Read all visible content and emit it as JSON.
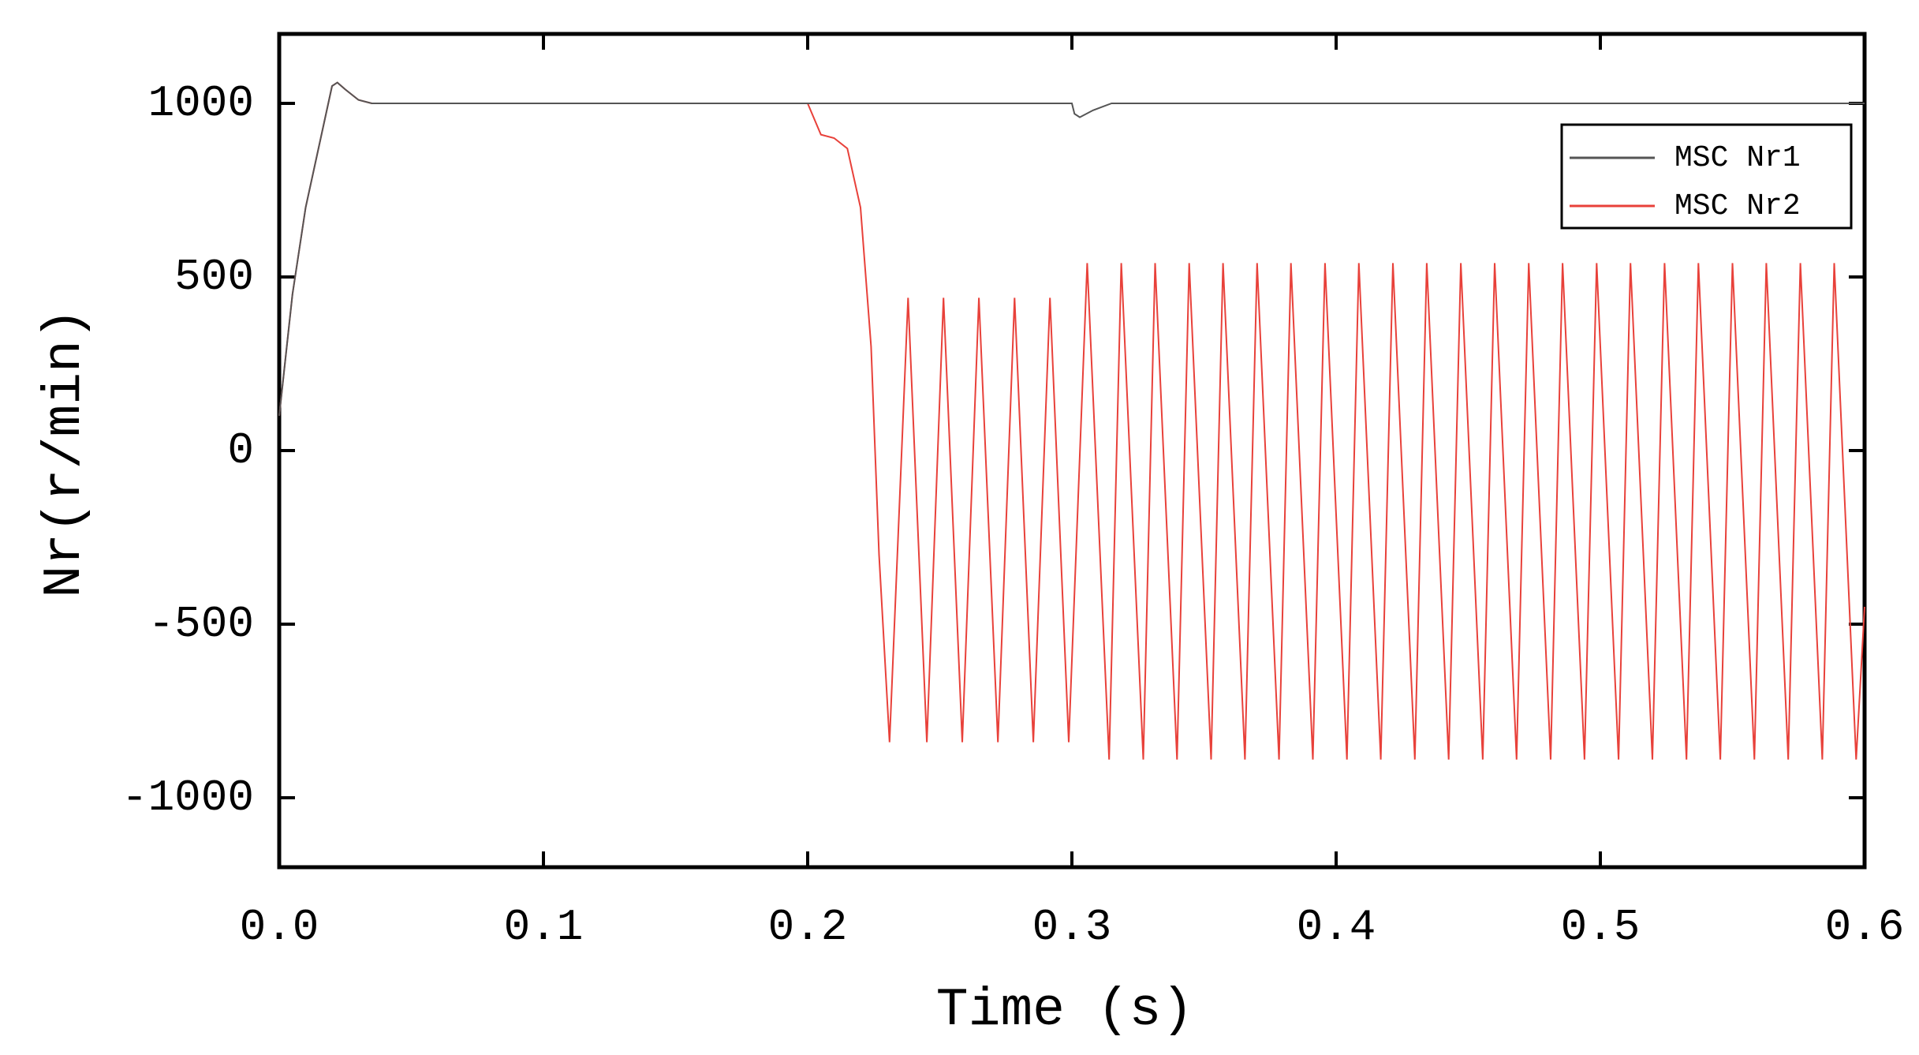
{
  "chart_data": {
    "type": "line",
    "xlabel": "Time (s)",
    "ylabel": "Nr(r/min)",
    "xlim": [
      0,
      0.6
    ],
    "ylim": [
      -1200,
      1200
    ],
    "xticks": [
      {
        "value": 0,
        "label": "0.0"
      },
      0.1,
      0.2,
      0.3,
      0.4,
      0.5,
      0.6
    ],
    "yticks": [
      -1000,
      -500,
      0,
      500,
      1000
    ],
    "legend": "top-right",
    "series": [
      {
        "name": "MSC Nr1",
        "color": "#555555",
        "x": [
          0,
          0.005,
          0.01,
          0.02,
          0.022,
          0.025,
          0.03,
          0.035,
          0.3,
          0.301,
          0.303,
          0.308,
          0.315,
          0.6
        ],
        "values": [
          100,
          450,
          700,
          1050,
          1060,
          1040,
          1010,
          1000,
          1000,
          970,
          960,
          980,
          1000,
          1000
        ]
      },
      {
        "name": "MSC Nr2",
        "color": "#e8413a",
        "x": [
          0,
          0.005,
          0.01,
          0.02,
          0.022,
          0.025,
          0.03,
          0.035,
          0.2,
          0.205,
          0.21,
          0.215,
          0.22,
          0.224,
          0.227,
          0.231,
          0.238,
          0.2451,
          0.2514,
          0.2585,
          0.2648,
          0.272,
          0.2783,
          0.2854,
          0.2917,
          0.2988,
          0.3058,
          0.3141,
          0.3187,
          0.327,
          0.3315,
          0.3398,
          0.3444,
          0.3527,
          0.3572,
          0.3655,
          0.3701,
          0.3784,
          0.3829,
          0.3912,
          0.3958,
          0.4041,
          0.4086,
          0.4169,
          0.4215,
          0.4298,
          0.4343,
          0.4426,
          0.4472,
          0.4555,
          0.46,
          0.4683,
          0.4729,
          0.4812,
          0.4857,
          0.494,
          0.4986,
          0.5069,
          0.5114,
          0.5197,
          0.5243,
          0.5326,
          0.5371,
          0.5454,
          0.55,
          0.5583,
          0.5628,
          0.5711,
          0.5757,
          0.584,
          0.5885,
          0.5968,
          0.6
        ],
        "values": [
          100,
          450,
          700,
          1050,
          1060,
          1040,
          1010,
          1000,
          1000,
          910,
          900,
          870,
          700,
          300,
          -300,
          -840,
          440,
          -840,
          440,
          -840,
          440,
          -840,
          440,
          -840,
          440,
          -840,
          540,
          -890,
          540,
          -890,
          540,
          -890,
          540,
          -890,
          540,
          -890,
          540,
          -890,
          540,
          -890,
          540,
          -890,
          540,
          -890,
          540,
          -890,
          540,
          -890,
          540,
          -890,
          540,
          -890,
          540,
          -890,
          540,
          -890,
          540,
          -890,
          540,
          -890,
          540,
          -890,
          540,
          -890,
          540,
          -890,
          540,
          -890,
          540,
          -890,
          540,
          -890,
          -450
        ]
      }
    ]
  }
}
